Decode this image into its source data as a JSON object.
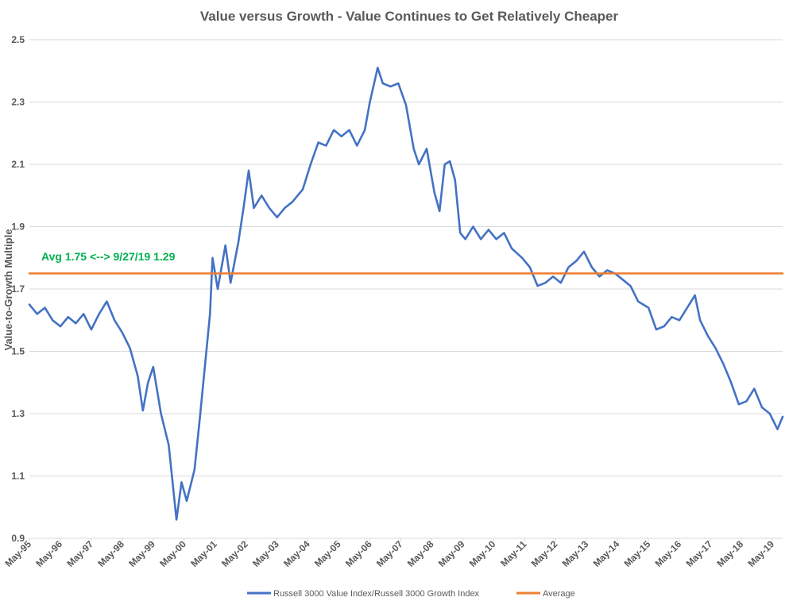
{
  "chart_data": {
    "type": "line",
    "title": "Value versus Growth - Value Continues to Get Relatively Cheaper",
    "xlabel": "",
    "ylabel": "Value-to-Growth Multiple",
    "ylim": [
      0.9,
      2.5
    ],
    "yticks": [
      "0.9",
      "1.1",
      "1.3",
      "1.5",
      "1.7",
      "1.9",
      "2.1",
      "2.3",
      "2.5"
    ],
    "xlim": [
      "1995-05",
      "2019-09"
    ],
    "xticks": [
      "May-95",
      "May-96",
      "May-97",
      "May-98",
      "May-99",
      "May-00",
      "May-01",
      "May-02",
      "May-03",
      "May-04",
      "May-05",
      "May-06",
      "May-07",
      "May-08",
      "May-09",
      "May-10",
      "May-11",
      "May-12",
      "May-13",
      "May-14",
      "May-15",
      "May-16",
      "May-17",
      "May-18",
      "May-19"
    ],
    "grid": true,
    "legend_position": "bottom",
    "annotation": "Avg 1.75 <--> 9/27/19 1.29",
    "series": [
      {
        "name": "Russell 3000 Value Index/Russell 3000 Growth Index",
        "color": "#4472c4",
        "points": [
          [
            "1995-05",
            1.65
          ],
          [
            "1995-08",
            1.62
          ],
          [
            "1995-11",
            1.64
          ],
          [
            "1996-02",
            1.6
          ],
          [
            "1996-05",
            1.58
          ],
          [
            "1996-08",
            1.61
          ],
          [
            "1996-11",
            1.59
          ],
          [
            "1997-02",
            1.62
          ],
          [
            "1997-05",
            1.57
          ],
          [
            "1997-08",
            1.62
          ],
          [
            "1997-11",
            1.66
          ],
          [
            "1998-02",
            1.6
          ],
          [
            "1998-05",
            1.56
          ],
          [
            "1998-08",
            1.51
          ],
          [
            "1998-11",
            1.42
          ],
          [
            "1999-01",
            1.31
          ],
          [
            "1999-03",
            1.4
          ],
          [
            "1999-05",
            1.45
          ],
          [
            "1999-08",
            1.3
          ],
          [
            "1999-11",
            1.2
          ],
          [
            "2000-02",
            0.96
          ],
          [
            "2000-04",
            1.08
          ],
          [
            "2000-06",
            1.02
          ],
          [
            "2000-09",
            1.12
          ],
          [
            "2000-11",
            1.28
          ],
          [
            "2001-01",
            1.45
          ],
          [
            "2001-03",
            1.62
          ],
          [
            "2001-04",
            1.8
          ],
          [
            "2001-06",
            1.7
          ],
          [
            "2001-09",
            1.84
          ],
          [
            "2001-11",
            1.72
          ],
          [
            "2002-02",
            1.85
          ],
          [
            "2002-04",
            1.96
          ],
          [
            "2002-06",
            2.08
          ],
          [
            "2002-08",
            1.96
          ],
          [
            "2002-11",
            2.0
          ],
          [
            "2003-02",
            1.96
          ],
          [
            "2003-05",
            1.93
          ],
          [
            "2003-08",
            1.96
          ],
          [
            "2003-11",
            1.98
          ],
          [
            "2004-03",
            2.02
          ],
          [
            "2004-06",
            2.1
          ],
          [
            "2004-09",
            2.17
          ],
          [
            "2004-12",
            2.16
          ],
          [
            "2005-03",
            2.21
          ],
          [
            "2005-06",
            2.19
          ],
          [
            "2005-09",
            2.21
          ],
          [
            "2005-12",
            2.16
          ],
          [
            "2006-03",
            2.21
          ],
          [
            "2006-05",
            2.3
          ],
          [
            "2006-08",
            2.41
          ],
          [
            "2006-10",
            2.36
          ],
          [
            "2007-01",
            2.35
          ],
          [
            "2007-04",
            2.36
          ],
          [
            "2007-07",
            2.29
          ],
          [
            "2007-10",
            2.15
          ],
          [
            "2007-12",
            2.1
          ],
          [
            "2008-03",
            2.15
          ],
          [
            "2008-06",
            2.01
          ],
          [
            "2008-08",
            1.95
          ],
          [
            "2008-10",
            2.1
          ],
          [
            "2008-12",
            2.11
          ],
          [
            "2009-02",
            2.05
          ],
          [
            "2009-04",
            1.88
          ],
          [
            "2009-06",
            1.86
          ],
          [
            "2009-09",
            1.9
          ],
          [
            "2009-12",
            1.86
          ],
          [
            "2010-03",
            1.89
          ],
          [
            "2010-06",
            1.86
          ],
          [
            "2010-09",
            1.88
          ],
          [
            "2010-12",
            1.83
          ],
          [
            "2011-04",
            1.8
          ],
          [
            "2011-07",
            1.77
          ],
          [
            "2011-10",
            1.71
          ],
          [
            "2012-01",
            1.72
          ],
          [
            "2012-04",
            1.74
          ],
          [
            "2012-07",
            1.72
          ],
          [
            "2012-10",
            1.77
          ],
          [
            "2013-01",
            1.79
          ],
          [
            "2013-04",
            1.82
          ],
          [
            "2013-07",
            1.77
          ],
          [
            "2013-10",
            1.74
          ],
          [
            "2014-01",
            1.76
          ],
          [
            "2014-04",
            1.75
          ],
          [
            "2014-07",
            1.73
          ],
          [
            "2014-10",
            1.71
          ],
          [
            "2015-01",
            1.66
          ],
          [
            "2015-05",
            1.64
          ],
          [
            "2015-08",
            1.57
          ],
          [
            "2015-11",
            1.58
          ],
          [
            "2016-02",
            1.61
          ],
          [
            "2016-05",
            1.6
          ],
          [
            "2016-08",
            1.64
          ],
          [
            "2016-11",
            1.68
          ],
          [
            "2017-01",
            1.6
          ],
          [
            "2017-04",
            1.55
          ],
          [
            "2017-07",
            1.51
          ],
          [
            "2017-10",
            1.46
          ],
          [
            "2018-01",
            1.4
          ],
          [
            "2018-04",
            1.33
          ],
          [
            "2018-07",
            1.34
          ],
          [
            "2018-10",
            1.38
          ],
          [
            "2019-01",
            1.32
          ],
          [
            "2019-04",
            1.3
          ],
          [
            "2019-07",
            1.25
          ],
          [
            "2019-09",
            1.29
          ]
        ]
      },
      {
        "name": "Average",
        "color": "#ed7d31",
        "points": [
          [
            "1995-05",
            1.75
          ],
          [
            "2019-09",
            1.75
          ]
        ]
      }
    ]
  }
}
